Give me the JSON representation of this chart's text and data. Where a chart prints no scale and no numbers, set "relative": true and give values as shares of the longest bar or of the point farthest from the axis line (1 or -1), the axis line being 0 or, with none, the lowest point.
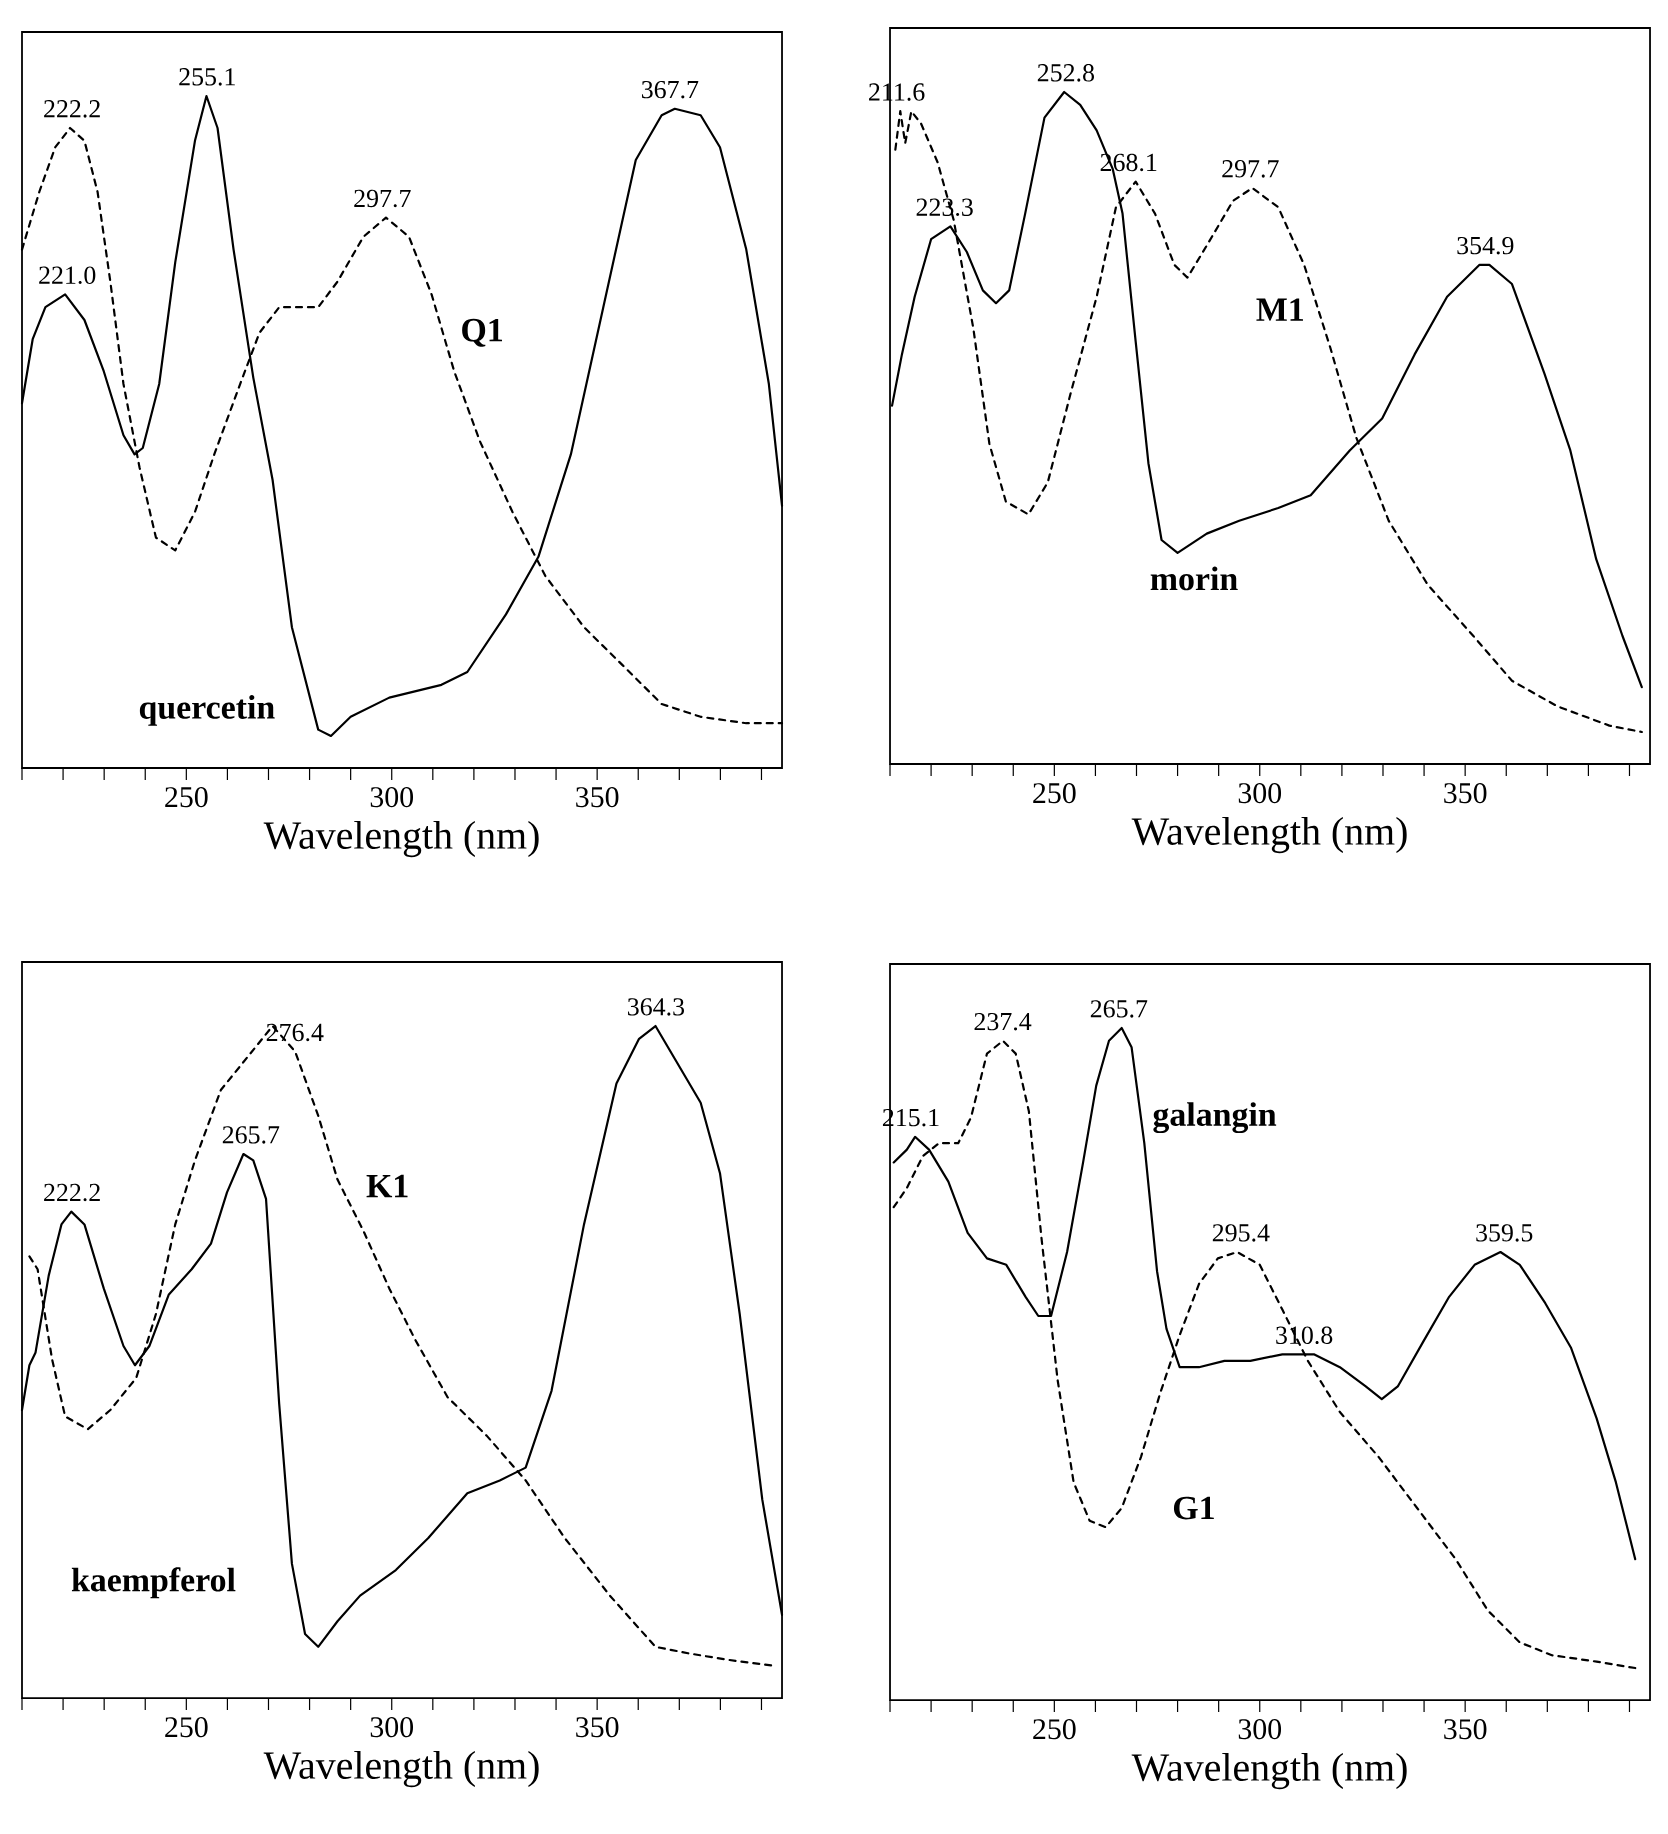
{
  "chart_data": [
    {
      "type": "line",
      "relative": true,
      "xlabel": "Wavelength (nm)",
      "xlim": [
        210,
        395
      ],
      "xticks": [
        250,
        300,
        350
      ],
      "series": [
        {
          "name": "quercetin",
          "color": "#000000",
          "line_style": "solid",
          "x": [
            210,
            212.6,
            215.7,
            220.5,
            225.2,
            229.9,
            234.7,
            237.4,
            239.4,
            243.4,
            247.3,
            252.1,
            254.9,
            257.6,
            261.5,
            266.3,
            271.0,
            275.7,
            282.1,
            285.2,
            290.0,
            299.4,
            312.1,
            318.4,
            327.8,
            335.7,
            343.6,
            351.5,
            359.4,
            365.7,
            368.9,
            375.2,
            379.9,
            386.3,
            391.8,
            395
          ],
          "values": [
            0.52,
            0.62,
            0.67,
            0.69,
            0.65,
            0.57,
            0.47,
            0.44,
            0.45,
            0.55,
            0.74,
            0.93,
            1.0,
            0.95,
            0.76,
            0.56,
            0.4,
            0.17,
            0.01,
            0.0,
            0.03,
            0.06,
            0.08,
            0.1,
            0.19,
            0.28,
            0.44,
            0.67,
            0.9,
            0.97,
            0.98,
            0.97,
            0.92,
            0.76,
            0.55,
            0.36
          ]
        },
        {
          "name": "Q1",
          "color": "#000000",
          "line_style": "dashed",
          "x": [
            210,
            214.2,
            218.1,
            221.7,
            225.2,
            228.4,
            231.5,
            234.7,
            238.6,
            242.6,
            247.3,
            252.1,
            256.8,
            263.1,
            267.8,
            272.6,
            282.1,
            286.8,
            293.1,
            298.6,
            304.2,
            309.7,
            315.2,
            321.5,
            329.4,
            337.4,
            346.8,
            356.3,
            365.7,
            375.2,
            386.3,
            395
          ],
          "values": [
            0.76,
            0.85,
            0.92,
            0.95,
            0.93,
            0.85,
            0.71,
            0.55,
            0.42,
            0.31,
            0.29,
            0.35,
            0.44,
            0.55,
            0.63,
            0.67,
            0.67,
            0.71,
            0.78,
            0.81,
            0.78,
            0.69,
            0.57,
            0.46,
            0.35,
            0.25,
            0.17,
            0.11,
            0.05,
            0.03,
            0.02,
            0.02
          ]
        }
      ],
      "annotations": [
        {
          "text": "222.2",
          "x": 222.2,
          "y": 0.95
        },
        {
          "text": "255.1",
          "x": 255.1,
          "y": 1.0
        },
        {
          "text": "221.0",
          "x": 221.0,
          "y": 0.69
        },
        {
          "text": "297.7",
          "x": 297.7,
          "y": 0.81
        },
        {
          "text": "367.7",
          "x": 367.7,
          "y": 0.98
        }
      ]
    },
    {
      "type": "line",
      "relative": true,
      "xlabel": "Wavelength (nm)",
      "xlim": [
        210,
        395
      ],
      "xticks": [
        250,
        300,
        350
      ],
      "series": [
        {
          "name": "morin",
          "color": "#000000",
          "line_style": "solid",
          "x": [
            210.5,
            212.9,
            216.0,
            220.0,
            224.7,
            228.7,
            232.6,
            235.8,
            239.0,
            242.9,
            247.6,
            252.4,
            256.3,
            260.3,
            264.2,
            266.6,
            269.8,
            272.9,
            276.1,
            280.0,
            287.1,
            295.0,
            304.5,
            312.4,
            321.9,
            329.8,
            337.7,
            345.6,
            353.5,
            355.9,
            361.4,
            369.3,
            375.6,
            381.9,
            388.3,
            393.0
          ],
          "values": [
            0.51,
            0.59,
            0.68,
            0.77,
            0.79,
            0.75,
            0.69,
            0.67,
            0.69,
            0.81,
            0.96,
            1.0,
            0.98,
            0.94,
            0.88,
            0.81,
            0.61,
            0.42,
            0.3,
            0.28,
            0.31,
            0.33,
            0.35,
            0.37,
            0.44,
            0.49,
            0.59,
            0.68,
            0.73,
            0.73,
            0.7,
            0.56,
            0.44,
            0.27,
            0.15,
            0.07
          ]
        },
        {
          "name": "M1",
          "color": "#000000",
          "line_style": "dashed",
          "x": [
            211.3,
            212.5,
            213.7,
            215.2,
            217.6,
            221.6,
            225.5,
            230.3,
            234.2,
            238.2,
            243.7,
            248.4,
            254.0,
            260.3,
            265.0,
            269.8,
            274.5,
            279.2,
            282.4,
            287.1,
            293.5,
            298.2,
            304.5,
            310.8,
            317.2,
            323.5,
            331.4,
            340.9,
            352.0,
            361.4,
            372.5,
            385.1,
            393.0
          ],
          "values": [
            0.91,
            0.97,
            0.92,
            0.97,
            0.95,
            0.89,
            0.8,
            0.63,
            0.45,
            0.36,
            0.34,
            0.39,
            0.53,
            0.68,
            0.82,
            0.86,
            0.81,
            0.73,
            0.71,
            0.76,
            0.83,
            0.85,
            0.82,
            0.73,
            0.6,
            0.46,
            0.33,
            0.23,
            0.15,
            0.08,
            0.04,
            0.01,
            0.0
          ]
        }
      ],
      "annotations": [
        {
          "text": "211.6",
          "x": 211.6,
          "y": 0.97
        },
        {
          "text": "252.8",
          "x": 252.8,
          "y": 1.0
        },
        {
          "text": "268.1",
          "x": 268.1,
          "y": 0.86
        },
        {
          "text": "297.7",
          "x": 297.7,
          "y": 0.85
        },
        {
          "text": "223.3",
          "x": 223.3,
          "y": 0.79
        },
        {
          "text": "354.9",
          "x": 354.9,
          "y": 0.73
        }
      ]
    },
    {
      "type": "line",
      "relative": true,
      "xlabel": "Wavelength (nm)",
      "xlim": [
        210,
        395
      ],
      "xticks": [
        250,
        300,
        350
      ],
      "series": [
        {
          "name": "kaempferol",
          "color": "#000000",
          "line_style": "solid",
          "x": [
            210,
            211.8,
            213.3,
            216.5,
            219.6,
            222.0,
            225.2,
            229.9,
            234.7,
            237.5,
            241.0,
            245.7,
            251.3,
            256.0,
            259.9,
            263.9,
            266.3,
            269.4,
            272.6,
            275.7,
            278.9,
            282.1,
            286.8,
            292.3,
            301.0,
            308.9,
            318.4,
            326.3,
            332.6,
            338.9,
            346.8,
            354.7,
            360.2,
            364.2,
            369.7,
            375.2,
            379.9,
            384.7,
            390.2,
            395
          ],
          "values": [
            0.4,
            0.47,
            0.49,
            0.61,
            0.69,
            0.71,
            0.69,
            0.59,
            0.5,
            0.47,
            0.5,
            0.58,
            0.62,
            0.66,
            0.74,
            0.8,
            0.79,
            0.73,
            0.41,
            0.16,
            0.05,
            0.03,
            0.07,
            0.11,
            0.15,
            0.2,
            0.27,
            0.29,
            0.31,
            0.43,
            0.69,
            0.91,
            0.98,
            1.0,
            0.94,
            0.88,
            0.77,
            0.55,
            0.26,
            0.08
          ]
        },
        {
          "name": "K1",
          "color": "#000000",
          "line_style": "dashed",
          "x": [
            211.8,
            213.8,
            217.3,
            220.5,
            226.0,
            231.5,
            237.8,
            242.6,
            247.3,
            252.1,
            258.4,
            264.7,
            271.0,
            276.5,
            282.1,
            286.8,
            293.1,
            299.4,
            305.7,
            313.6,
            323.1,
            332.6,
            342.1,
            353.1,
            364.2,
            372.1,
            381.5,
            393.4
          ],
          "values": [
            0.64,
            0.62,
            0.48,
            0.39,
            0.37,
            0.4,
            0.45,
            0.55,
            0.69,
            0.79,
            0.9,
            0.95,
            1.0,
            0.96,
            0.86,
            0.76,
            0.68,
            0.59,
            0.51,
            0.42,
            0.36,
            0.29,
            0.2,
            0.11,
            0.03,
            0.02,
            0.01,
            0.0
          ]
        }
      ],
      "annotations": [
        {
          "text": "276.4",
          "x": 276.4,
          "y": 0.96
        },
        {
          "text": "364.3",
          "x": 364.3,
          "y": 1.0
        },
        {
          "text": "265.7",
          "x": 265.7,
          "y": 0.8
        },
        {
          "text": "222.2",
          "x": 222.2,
          "y": 0.71
        }
      ]
    },
    {
      "type": "line",
      "relative": true,
      "xlabel": "Wavelength (nm)",
      "xlim": [
        210,
        395
      ],
      "xticks": [
        250,
        300,
        350
      ],
      "series": [
        {
          "name": "galangin",
          "color": "#000000",
          "line_style": "solid",
          "x": [
            210.9,
            214.1,
            216.1,
            219.5,
            224.2,
            228.9,
            233.6,
            238.3,
            243.0,
            246.1,
            249.2,
            253.1,
            257.0,
            260.2,
            263.3,
            266.4,
            268.8,
            271.9,
            275.0,
            277.3,
            280.5,
            285.2,
            291.4,
            297.7,
            305.5,
            313.3,
            319.5,
            325.8,
            329.7,
            333.6,
            339.8,
            346.1,
            352.3,
            358.6,
            363.3,
            369.5,
            375.8,
            382.0,
            386.7,
            391.4
          ],
          "values": [
            0.79,
            0.81,
            0.83,
            0.81,
            0.76,
            0.68,
            0.64,
            0.63,
            0.58,
            0.55,
            0.55,
            0.65,
            0.79,
            0.91,
            0.98,
            1.0,
            0.97,
            0.82,
            0.62,
            0.53,
            0.47,
            0.47,
            0.48,
            0.48,
            0.49,
            0.49,
            0.47,
            0.44,
            0.42,
            0.44,
            0.51,
            0.58,
            0.63,
            0.65,
            0.63,
            0.57,
            0.5,
            0.39,
            0.29,
            0.17
          ]
        },
        {
          "name": "G1",
          "color": "#000000",
          "line_style": "dashed",
          "x": [
            210.9,
            214.1,
            218.0,
            221.9,
            226.6,
            229.7,
            233.6,
            237.5,
            240.6,
            243.8,
            246.9,
            250.8,
            254.7,
            258.6,
            262.5,
            266.4,
            271.1,
            275.8,
            280.5,
            285.2,
            289.8,
            294.5,
            300.0,
            305.5,
            311.7,
            319.5,
            328.9,
            338.3,
            347.7,
            355.5,
            363.3,
            371.1,
            382.0,
            391.4
          ],
          "values": [
            0.72,
            0.75,
            0.8,
            0.82,
            0.82,
            0.86,
            0.96,
            0.98,
            0.96,
            0.87,
            0.67,
            0.45,
            0.29,
            0.23,
            0.22,
            0.25,
            0.33,
            0.43,
            0.52,
            0.6,
            0.64,
            0.65,
            0.63,
            0.56,
            0.48,
            0.4,
            0.33,
            0.25,
            0.17,
            0.09,
            0.04,
            0.02,
            0.01,
            0.0
          ]
        }
      ],
      "annotations": [
        {
          "text": "237.4",
          "x": 237.4,
          "y": 0.98
        },
        {
          "text": "265.7",
          "x": 265.7,
          "y": 1.0
        },
        {
          "text": "215.1",
          "x": 215.1,
          "y": 0.83
        },
        {
          "text": "295.4",
          "x": 295.4,
          "y": 0.65
        },
        {
          "text": "310.8",
          "x": 310.8,
          "y": 0.49
        },
        {
          "text": "359.5",
          "x": 359.5,
          "y": 0.65
        }
      ]
    }
  ]
}
